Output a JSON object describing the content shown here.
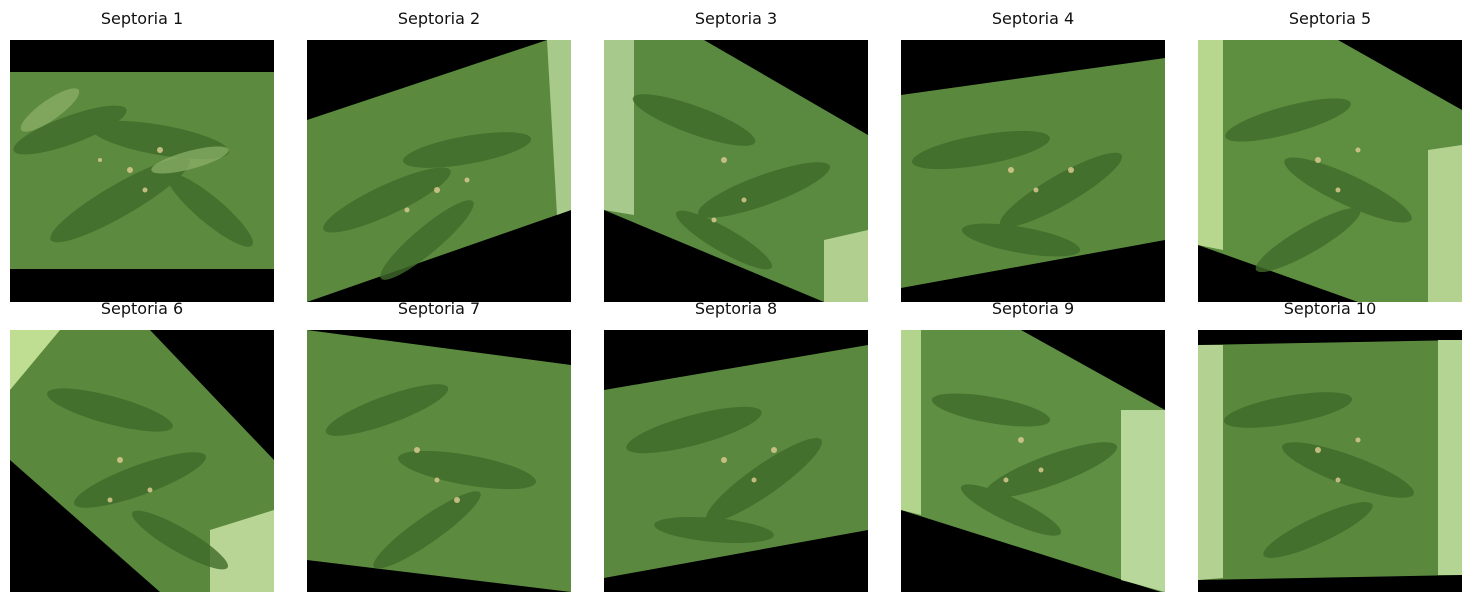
{
  "panels": [
    {
      "title": "Septoria 1",
      "shape": "square",
      "leaf_color": "#4f7f35"
    },
    {
      "title": "Septoria 2",
      "shape": "rot-left",
      "leaf_color": "#567f39"
    },
    {
      "title": "Septoria 3",
      "shape": "skew-down",
      "leaf_color": "#52803a"
    },
    {
      "title": "Septoria 4",
      "shape": "rot-left-small",
      "leaf_color": "#4f7c35"
    },
    {
      "title": "Septoria 5",
      "shape": "skew-down-right",
      "leaf_color": "#5a8a3b"
    },
    {
      "title": "Septoria 6",
      "shape": "rot-right",
      "leaf_color": "#4e7c35"
    },
    {
      "title": "Septoria 7",
      "shape": "perspective",
      "leaf_color": "#4f8038"
    },
    {
      "title": "Septoria 8",
      "shape": "rot-left-small",
      "leaf_color": "#4f7d36"
    },
    {
      "title": "Septoria 9",
      "shape": "skew-down",
      "leaf_color": "#558741"
    },
    {
      "title": "Septoria 10",
      "shape": "square",
      "leaf_color": "#4e7a35"
    }
  ]
}
